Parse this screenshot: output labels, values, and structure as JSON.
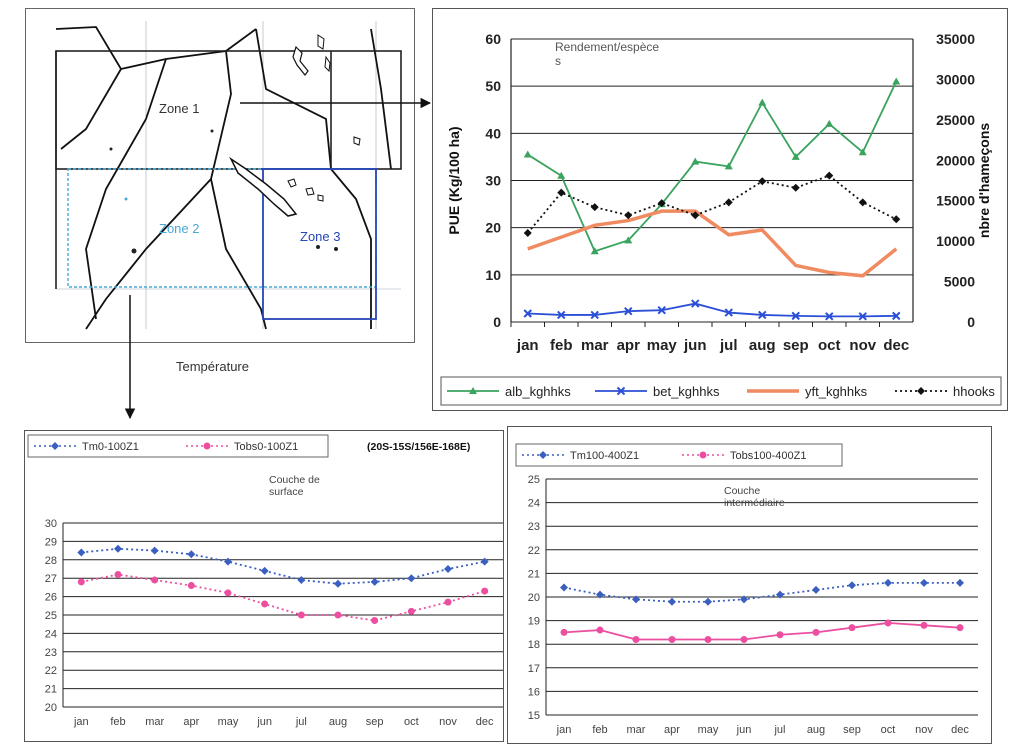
{
  "map": {
    "zone1_label": "Zone 1",
    "zone2_label": "Zone 2",
    "zone3_label": "Zone 3"
  },
  "temperature_label": "Température",
  "colors": {
    "alb": "#3aa35e",
    "bet": "#2b4fd6",
    "yft": "#f08a60",
    "hhooks": "#111111",
    "tm": "#3b5fc0",
    "tobs": "#ec4fa0",
    "zone1_frame": "#222222",
    "zone2_frame": "#4aa8d8",
    "zone3_frame": "#2646b8"
  },
  "chart_data": [
    {
      "id": "top",
      "type": "line",
      "title": "Rendement/espèce\ns",
      "ylabel": "PUE (Kg/100 ha)",
      "y2label": "nbre d'hameçons",
      "ylim": [
        0,
        60
      ],
      "y2lim": [
        0,
        35000
      ],
      "yticks": [
        0,
        10,
        20,
        30,
        40,
        50,
        60
      ],
      "y2ticks": [
        0,
        5000,
        10000,
        15000,
        20000,
        25000,
        30000,
        35000
      ],
      "grid": true,
      "legend": "bottom",
      "categories": [
        "jan",
        "feb",
        "mar",
        "apr",
        "may",
        "jun",
        "jul",
        "aug",
        "sep",
        "oct",
        "nov",
        "dec"
      ],
      "series": [
        {
          "name": "alb_kghhks",
          "axis": "left",
          "style": "solid",
          "marker": "triangle",
          "values": [
            35.5,
            31,
            15,
            17.3,
            25,
            34,
            33,
            46.5,
            35,
            42,
            36,
            51
          ]
        },
        {
          "name": "bet_kghhks",
          "axis": "left",
          "style": "solid",
          "marker": "cross",
          "values": [
            1.8,
            1.5,
            1.5,
            2.3,
            2.5,
            3.9,
            2,
            1.5,
            1.3,
            1.2,
            1.2,
            1.3
          ]
        },
        {
          "name": "yft_kghhks",
          "axis": "left",
          "style": "thick",
          "marker": "none",
          "values": [
            15.5,
            18,
            20.5,
            21.5,
            23.5,
            23.5,
            18.5,
            19.5,
            12,
            10.5,
            9.8,
            15.5
          ]
        },
        {
          "name": "hhooks",
          "axis": "right",
          "style": "dotted",
          "marker": "diamond",
          "values": [
            11000,
            16000,
            14200,
            13200,
            14700,
            13200,
            14800,
            17400,
            16600,
            18100,
            14800,
            12700
          ]
        }
      ]
    },
    {
      "id": "bottom-left",
      "type": "line",
      "title": "Couche        de\nsurface",
      "annotation": "(20S-15S/156E-168E)",
      "ylim": [
        20,
        30
      ],
      "yticks": [
        20,
        21,
        22,
        23,
        24,
        25,
        26,
        27,
        28,
        29,
        30
      ],
      "grid": true,
      "legend": "top",
      "categories": [
        "jan",
        "feb",
        "mar",
        "apr",
        "may",
        "jun",
        "jul",
        "aug",
        "sep",
        "oct",
        "nov",
        "dec"
      ],
      "series": [
        {
          "name": "Tm0-100Z1",
          "style": "dotted",
          "values": [
            28.4,
            28.6,
            28.5,
            28.3,
            27.9,
            27.4,
            26.9,
            26.7,
            26.8,
            27.0,
            27.5,
            27.9
          ]
        },
        {
          "name": "Tobs0-100Z1",
          "style": "dotted",
          "values": [
            26.8,
            27.2,
            26.9,
            26.6,
            26.2,
            25.6,
            25.0,
            25.0,
            24.7,
            25.2,
            25.7,
            26.3
          ]
        }
      ]
    },
    {
      "id": "bottom-right",
      "type": "line",
      "title": "Couche\nintermédiaire",
      "ylim": [
        15,
        25
      ],
      "yticks": [
        15,
        16,
        17,
        18,
        19,
        20,
        21,
        22,
        23,
        24,
        25
      ],
      "grid": true,
      "legend": "top",
      "categories": [
        "jan",
        "feb",
        "mar",
        "apr",
        "may",
        "jun",
        "jul",
        "aug",
        "sep",
        "oct",
        "nov",
        "dec"
      ],
      "series": [
        {
          "name": "Tm100-400Z1",
          "style": "dotted",
          "values": [
            20.4,
            20.1,
            19.9,
            19.8,
            19.8,
            19.9,
            20.1,
            20.3,
            20.5,
            20.6,
            20.6,
            20.6
          ]
        },
        {
          "name": "Tobs100-400Z1",
          "style": "solid",
          "values": [
            18.5,
            18.6,
            18.2,
            18.2,
            18.2,
            18.2,
            18.4,
            18.5,
            18.7,
            18.9,
            18.8,
            18.7
          ]
        }
      ]
    }
  ]
}
